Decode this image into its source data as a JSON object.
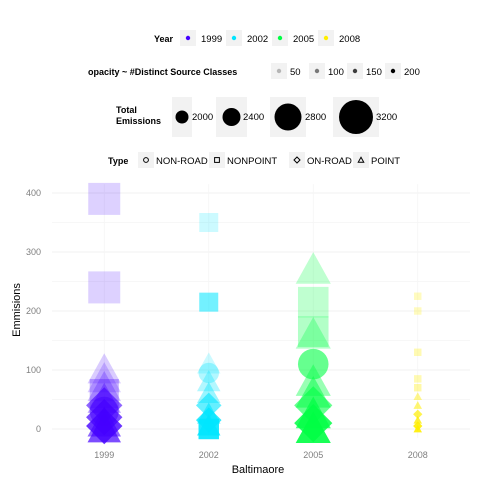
{
  "chart_data": {
    "type": "scatter",
    "title": "",
    "xlabel": "Baltimaore",
    "ylabel": "Emmisions",
    "categories": [
      "1999",
      "2002",
      "2005",
      "2008"
    ],
    "yticks": [
      0,
      100,
      200,
      300,
      400
    ],
    "ylim": [
      -20,
      420
    ],
    "grid": true,
    "legends": {
      "year": {
        "title": "Year",
        "entries": [
          {
            "label": "1999",
            "color": "#4400ff"
          },
          {
            "label": "2002",
            "color": "#00e5ff"
          },
          {
            "label": "2005",
            "color": "#00ff44"
          },
          {
            "label": "2008",
            "color": "#ffee00"
          }
        ]
      },
      "opacity": {
        "title": "opacity ~ #Distinct Source Classes",
        "entries": [
          {
            "label": "50",
            "opacity": 0.25
          },
          {
            "label": "100",
            "opacity": 0.5
          },
          {
            "label": "150",
            "opacity": 0.75
          },
          {
            "label": "200",
            "opacity": 1.0
          }
        ]
      },
      "size": {
        "title_line1": "Total",
        "title_line2": "Emissions",
        "entries": [
          {
            "label": "2000",
            "value": 2000
          },
          {
            "label": "2400",
            "value": 2400
          },
          {
            "label": "2800",
            "value": 2800
          },
          {
            "label": "3200",
            "value": 3200
          }
        ]
      },
      "type": {
        "title": "Type",
        "entries": [
          {
            "label": "NON-ROAD",
            "shape": "circle"
          },
          {
            "label": "NONPOINT",
            "shape": "square"
          },
          {
            "label": "ON-ROAD",
            "shape": "diamond"
          },
          {
            "label": "POINT",
            "shape": "triangle"
          }
        ]
      }
    },
    "series": [
      {
        "x": "1999",
        "color": "#4400ff",
        "points": [
          {
            "y": 390,
            "shape": "square",
            "total": 3200,
            "alpha": 0.18
          },
          {
            "y": 240,
            "shape": "square",
            "total": 3200,
            "alpha": 0.18
          },
          {
            "y": 100,
            "shape": "triangle",
            "total": 3000,
            "alpha": 0.2
          },
          {
            "y": 85,
            "shape": "triangle",
            "total": 3000,
            "alpha": 0.2
          },
          {
            "y": 70,
            "shape": "triangle",
            "total": 3000,
            "alpha": 0.25
          },
          {
            "y": 60,
            "shape": "square",
            "total": 3000,
            "alpha": 0.3
          },
          {
            "y": 50,
            "shape": "triangle",
            "total": 3000,
            "alpha": 0.35
          },
          {
            "y": 40,
            "shape": "diamond",
            "total": 3000,
            "alpha": 0.6
          },
          {
            "y": 30,
            "shape": "circle",
            "total": 3000,
            "alpha": 0.5
          },
          {
            "y": 20,
            "shape": "diamond",
            "total": 3000,
            "alpha": 0.7
          },
          {
            "y": 10,
            "shape": "triangle",
            "total": 3000,
            "alpha": 0.6
          },
          {
            "y": 5,
            "shape": "diamond",
            "total": 3000,
            "alpha": 0.8
          },
          {
            "y": 0,
            "shape": "triangle",
            "total": 3000,
            "alpha": 0.7
          }
        ]
      },
      {
        "x": "2002",
        "color": "#00e5ff",
        "points": [
          {
            "y": 350,
            "shape": "square",
            "total": 2300,
            "alpha": 0.2
          },
          {
            "y": 215,
            "shape": "square",
            "total": 2300,
            "alpha": 0.55
          },
          {
            "y": 110,
            "shape": "triangle",
            "total": 2400,
            "alpha": 0.2
          },
          {
            "y": 95,
            "shape": "circle",
            "total": 2400,
            "alpha": 0.3
          },
          {
            "y": 80,
            "shape": "triangle",
            "total": 2400,
            "alpha": 0.3
          },
          {
            "y": 60,
            "shape": "triangle",
            "total": 2400,
            "alpha": 0.4
          },
          {
            "y": 40,
            "shape": "diamond",
            "total": 2400,
            "alpha": 0.6
          },
          {
            "y": 25,
            "shape": "triangle",
            "total": 2400,
            "alpha": 0.6
          },
          {
            "y": 15,
            "shape": "diamond",
            "total": 2400,
            "alpha": 0.8
          },
          {
            "y": 5,
            "shape": "triangle",
            "total": 2400,
            "alpha": 0.8
          },
          {
            "y": 0,
            "shape": "square",
            "total": 2400,
            "alpha": 0.9
          }
        ]
      },
      {
        "x": "2005",
        "color": "#00ff44",
        "points": [
          {
            "y": 270,
            "shape": "triangle",
            "total": 3100,
            "alpha": 0.25
          },
          {
            "y": 215,
            "shape": "square",
            "total": 3100,
            "alpha": 0.25
          },
          {
            "y": 165,
            "shape": "square",
            "total": 3100,
            "alpha": 0.3
          },
          {
            "y": 160,
            "shape": "triangle",
            "total": 3100,
            "alpha": 0.3
          },
          {
            "y": 110,
            "shape": "circle",
            "total": 3100,
            "alpha": 0.6
          },
          {
            "y": 80,
            "shape": "triangle",
            "total": 3100,
            "alpha": 0.4
          },
          {
            "y": 60,
            "shape": "triangle",
            "total": 3100,
            "alpha": 0.5
          },
          {
            "y": 40,
            "shape": "diamond",
            "total": 3100,
            "alpha": 0.6
          },
          {
            "y": 25,
            "shape": "triangle",
            "total": 3100,
            "alpha": 0.7
          },
          {
            "y": 10,
            "shape": "diamond",
            "total": 3100,
            "alpha": 0.85
          },
          {
            "y": 0,
            "shape": "triangle",
            "total": 3100,
            "alpha": 0.9
          }
        ]
      },
      {
        "x": "2008",
        "color": "#ffee00",
        "points": [
          {
            "y": 225,
            "shape": "square",
            "total": 1500,
            "alpha": 0.25
          },
          {
            "y": 200,
            "shape": "square",
            "total": 1500,
            "alpha": 0.25
          },
          {
            "y": 130,
            "shape": "square",
            "total": 1500,
            "alpha": 0.3
          },
          {
            "y": 85,
            "shape": "square",
            "total": 1500,
            "alpha": 0.3
          },
          {
            "y": 70,
            "shape": "square",
            "total": 1500,
            "alpha": 0.35
          },
          {
            "y": 55,
            "shape": "triangle",
            "total": 1500,
            "alpha": 0.45
          },
          {
            "y": 40,
            "shape": "triangle",
            "total": 1500,
            "alpha": 0.55
          },
          {
            "y": 25,
            "shape": "diamond",
            "total": 1500,
            "alpha": 0.7
          },
          {
            "y": 15,
            "shape": "triangle",
            "total": 1500,
            "alpha": 0.8
          },
          {
            "y": 5,
            "shape": "diamond",
            "total": 1500,
            "alpha": 0.9
          },
          {
            "y": 0,
            "shape": "triangle",
            "total": 1500,
            "alpha": 0.9
          }
        ]
      }
    ]
  }
}
